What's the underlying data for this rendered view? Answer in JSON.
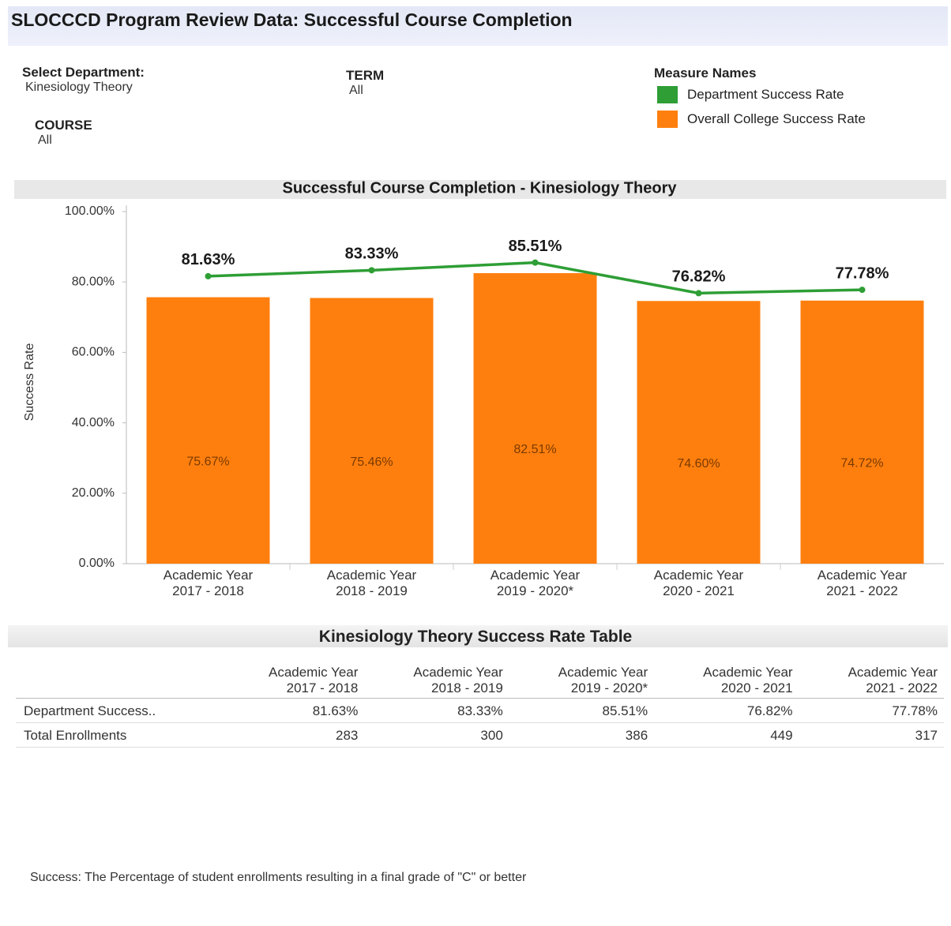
{
  "header": {
    "title": "SLOCCCD Program Review Data: Successful Course Completion"
  },
  "filters": [
    {
      "label": "Select Department:",
      "value": "Kinesiology Theory"
    },
    {
      "label": "TERM",
      "value": "All"
    },
    {
      "label": "COURSE",
      "value": "All"
    }
  ],
  "legend_title": "Measure Names",
  "chart_data": {
    "type": "combo",
    "title": "Successful Course Completion - Kinesiology Theory",
    "y_label": "Success Rate",
    "categories": [
      "Academic Year\n2017 - 2018",
      "Academic Year\n2018 - 2019",
      "Academic Year\n2019 - 2020*",
      "Academic Year\n2020 - 2021",
      "Academic Year\n2021 - 2022"
    ],
    "series": [
      {
        "name": "Department Success Rate",
        "type": "line",
        "color": "#2e9e35",
        "values": [
          81.63,
          83.33,
          85.51,
          76.82,
          77.78
        ],
        "value_labels": [
          "81.63%",
          "83.33%",
          "85.51%",
          "76.82%",
          "77.78%"
        ]
      },
      {
        "name": "Overall College Success Rate",
        "type": "bar",
        "color": "#ff7f0e",
        "values": [
          75.67,
          75.46,
          82.51,
          74.6,
          74.72
        ],
        "value_labels": [
          "75.67%",
          "75.46%",
          "82.51%",
          "74.60%",
          "74.72%"
        ]
      }
    ],
    "ylim": [
      0,
      100
    ],
    "yticks": [
      {
        "value": 0,
        "label": "0.00%"
      },
      {
        "value": 20,
        "label": "20.00%"
      },
      {
        "value": 40,
        "label": "40.00%"
      },
      {
        "value": 60,
        "label": "60.00%"
      },
      {
        "value": 80,
        "label": "80.00%"
      },
      {
        "value": 100,
        "label": "100.00%"
      }
    ],
    "grid": false
  },
  "table": {
    "title": "Kinesiology Theory Success Rate Table",
    "columns": [
      "Academic Year\n2017 - 2018",
      "Academic Year\n2018 - 2019",
      "Academic Year\n2019 - 2020*",
      "Academic Year\n2020 - 2021",
      "Academic Year\n2021 - 2022"
    ],
    "rows": [
      [
        "Department Success..",
        "81.63%",
        "83.33%",
        "85.51%",
        "76.82%",
        "77.78%"
      ],
      [
        "Total Enrollments",
        "283",
        "300",
        "386",
        "449",
        "317"
      ]
    ]
  },
  "footnote": "Success: The Percentage of student enrollments resulting in a final grade of \"C\" or better"
}
